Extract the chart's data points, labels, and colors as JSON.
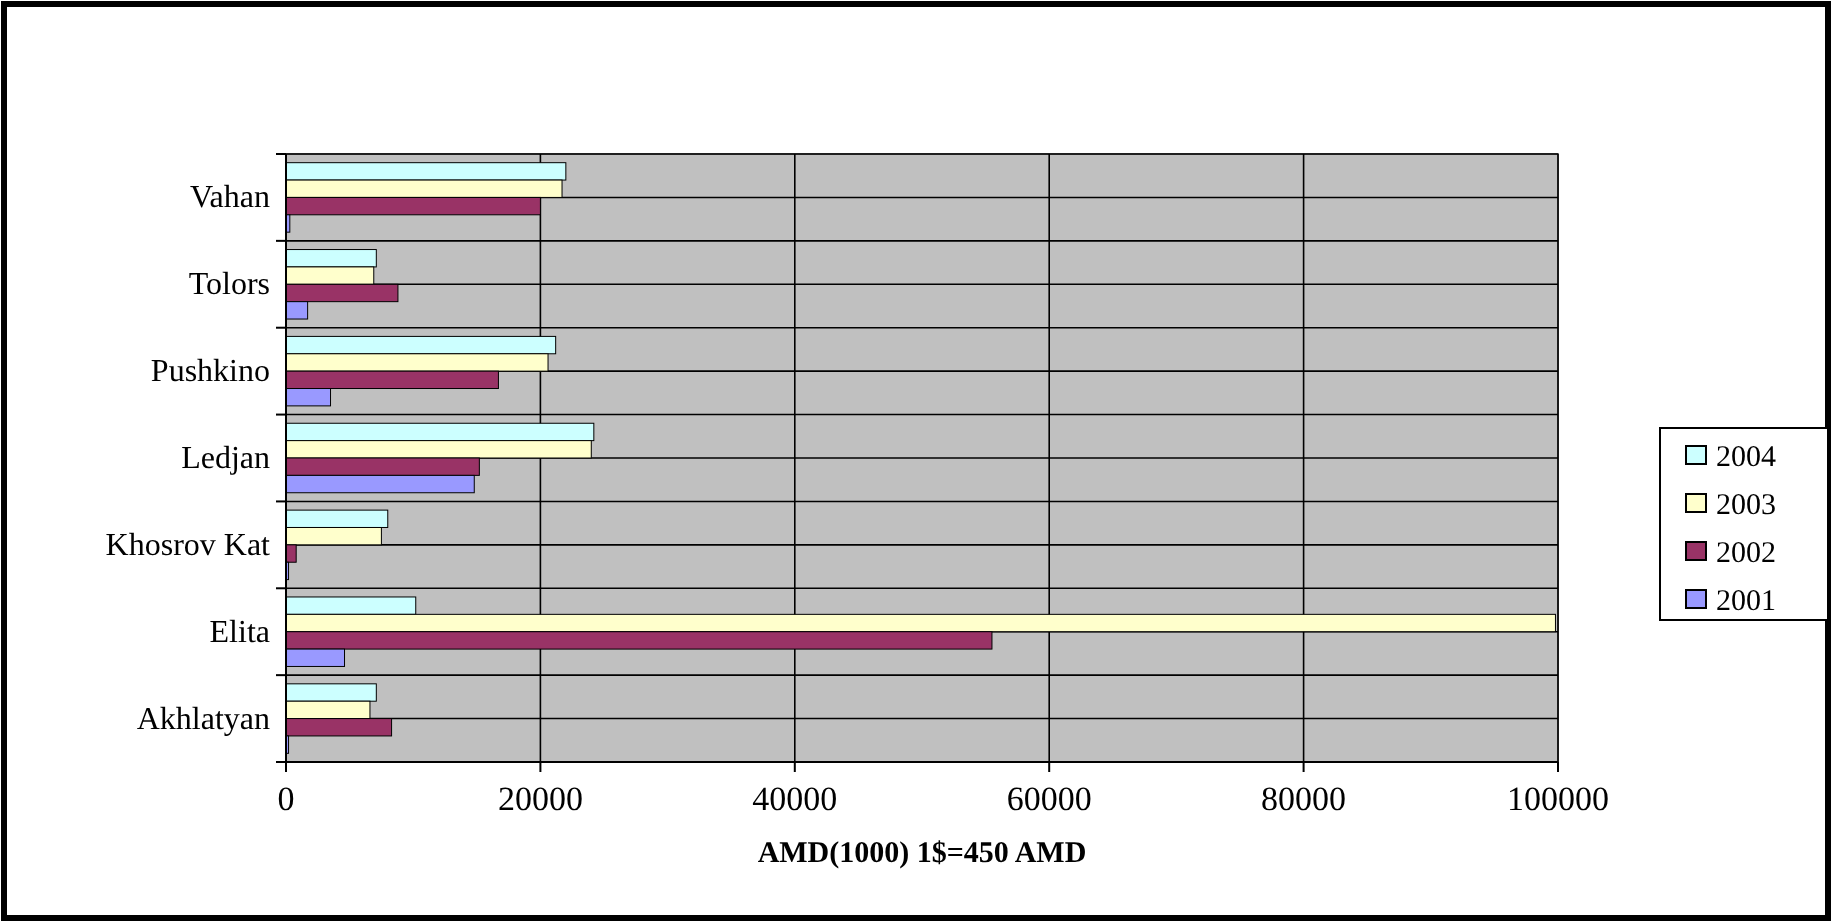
{
  "chart_data": {
    "type": "bar",
    "orientation": "horizontal",
    "xlabel": "AMD(1000) 1$=450 AMD",
    "categories": [
      "Vahan",
      "Tolors",
      "Pushkino",
      "Ledjan",
      "Khosrov Kat",
      "Elita",
      "Akhlatyan"
    ],
    "series": [
      {
        "name": "2004",
        "color": "#ccffff",
        "values": [
          22000,
          7100,
          21200,
          24200,
          8000,
          10200,
          7100
        ]
      },
      {
        "name": "2003",
        "color": "#ffffcc",
        "values": [
          21700,
          6900,
          20600,
          24000,
          7500,
          99800,
          6600
        ]
      },
      {
        "name": "2002",
        "color": "#993366",
        "values": [
          20000,
          8800,
          16700,
          15200,
          800,
          55500,
          8300
        ]
      },
      {
        "name": "2001",
        "color": "#9999ff",
        "values": [
          300,
          1700,
          3500,
          14800,
          200,
          4600,
          200
        ]
      }
    ],
    "xlim": [
      0,
      100000
    ],
    "xticks": [
      0,
      20000,
      40000,
      60000,
      80000,
      100000
    ],
    "grid": true,
    "legend": "right"
  }
}
